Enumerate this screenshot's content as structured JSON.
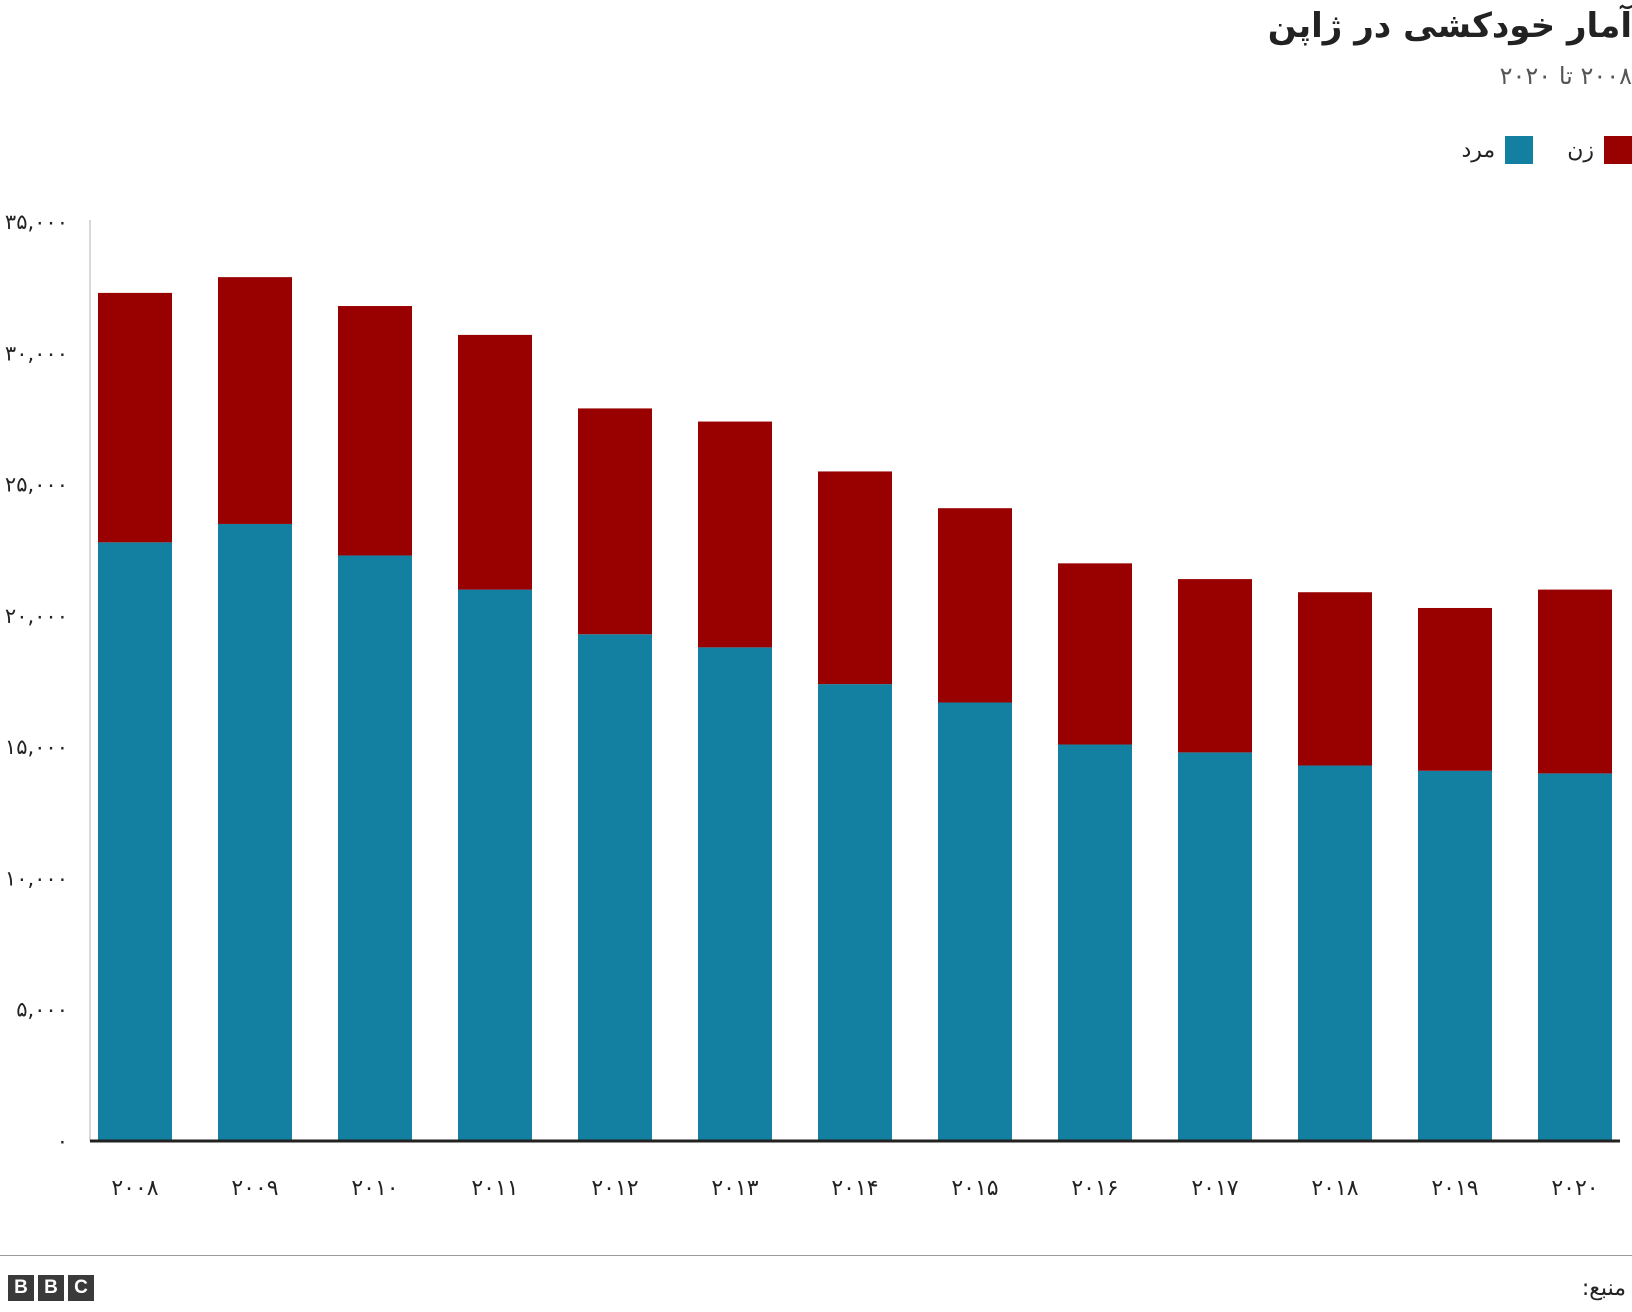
{
  "header": {
    "title": "آمار خودکشی در ژاپن",
    "subtitle": "۲۰۰۸ تا ۲۰۲۰"
  },
  "legend": {
    "items": [
      {
        "label": "زن",
        "color": "#990000"
      },
      {
        "label": "مرد",
        "color": "#1380A1"
      }
    ]
  },
  "footer": {
    "source_label": "منبع:",
    "logo_letters": [
      "B",
      "B",
      "C"
    ]
  },
  "chart_data": {
    "type": "bar",
    "stacked": true,
    "title": "آمار خودکشی در ژاپن",
    "subtitle": "۲۰۰۸ تا ۲۰۲۰",
    "xlabel": "",
    "ylabel": "",
    "categories": [
      "۲۰۰۸",
      "۲۰۰۹",
      "۲۰۱۰",
      "۲۰۱۱",
      "۲۰۱۲",
      "۲۰۱۳",
      "۲۰۱۴",
      "۲۰۱۵",
      "۲۰۱۶",
      "۲۰۱۷",
      "۲۰۱۸",
      "۲۰۱۹",
      "۲۰۲۰"
    ],
    "series": [
      {
        "name": "مرد",
        "color": "#1380A1",
        "values": [
          22800,
          23500,
          22300,
          21000,
          19300,
          18800,
          17400,
          16700,
          15100,
          14800,
          14300,
          14100,
          14000
        ]
      },
      {
        "name": "زن",
        "color": "#990000",
        "values": [
          9500,
          9400,
          9500,
          9700,
          8600,
          8600,
          8100,
          7400,
          6900,
          6600,
          6600,
          6200,
          7000
        ]
      }
    ],
    "ylim": [
      0,
      35000
    ],
    "yticks": [
      0,
      5000,
      10000,
      15000,
      20000,
      25000,
      30000,
      35000
    ],
    "ytick_labels": [
      "۰",
      "۵,۰۰۰",
      "۱۰,۰۰۰",
      "۱۵,۰۰۰",
      "۲۰,۰۰۰",
      "۲۵,۰۰۰",
      "۳۰,۰۰۰",
      "۳۵,۰۰۰"
    ],
    "grid": false,
    "legend_position": "top-right"
  }
}
